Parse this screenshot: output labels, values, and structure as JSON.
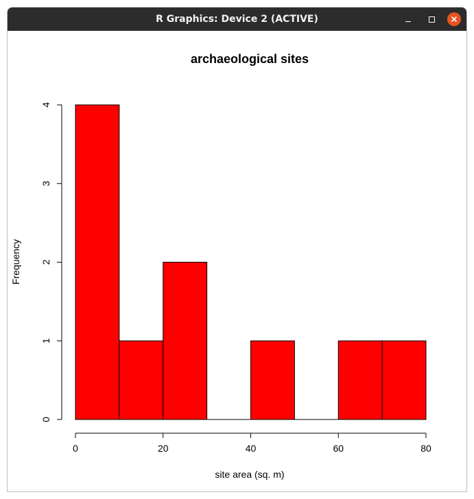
{
  "window": {
    "title": "R Graphics: Device 2 (ACTIVE)",
    "buttons": {
      "minimize_icon": "minimize-icon",
      "maximize_icon": "maximize-icon",
      "close_icon": "close-icon",
      "close_color": "#e95420"
    },
    "titlebar_color": "#2c2c2c"
  },
  "chart_data": {
    "type": "bar",
    "title": "archaeological sites",
    "xlabel": "site area (sq. m)",
    "ylabel": "Frequency",
    "bins": [
      {
        "from": 0,
        "to": 10,
        "count": 4
      },
      {
        "from": 10,
        "to": 20,
        "count": 1
      },
      {
        "from": 20,
        "to": 30,
        "count": 2
      },
      {
        "from": 30,
        "to": 40,
        "count": 0
      },
      {
        "from": 40,
        "to": 50,
        "count": 1
      },
      {
        "from": 50,
        "to": 60,
        "count": 0
      },
      {
        "from": 60,
        "to": 70,
        "count": 1
      },
      {
        "from": 70,
        "to": 80,
        "count": 1
      }
    ],
    "xlim": [
      0,
      80
    ],
    "ylim": [
      0,
      4
    ],
    "x_ticks": [
      0,
      20,
      40,
      60,
      80
    ],
    "y_ticks": [
      0,
      1,
      2,
      3,
      4
    ],
    "bar_color": "#ff0000",
    "grid": false
  }
}
